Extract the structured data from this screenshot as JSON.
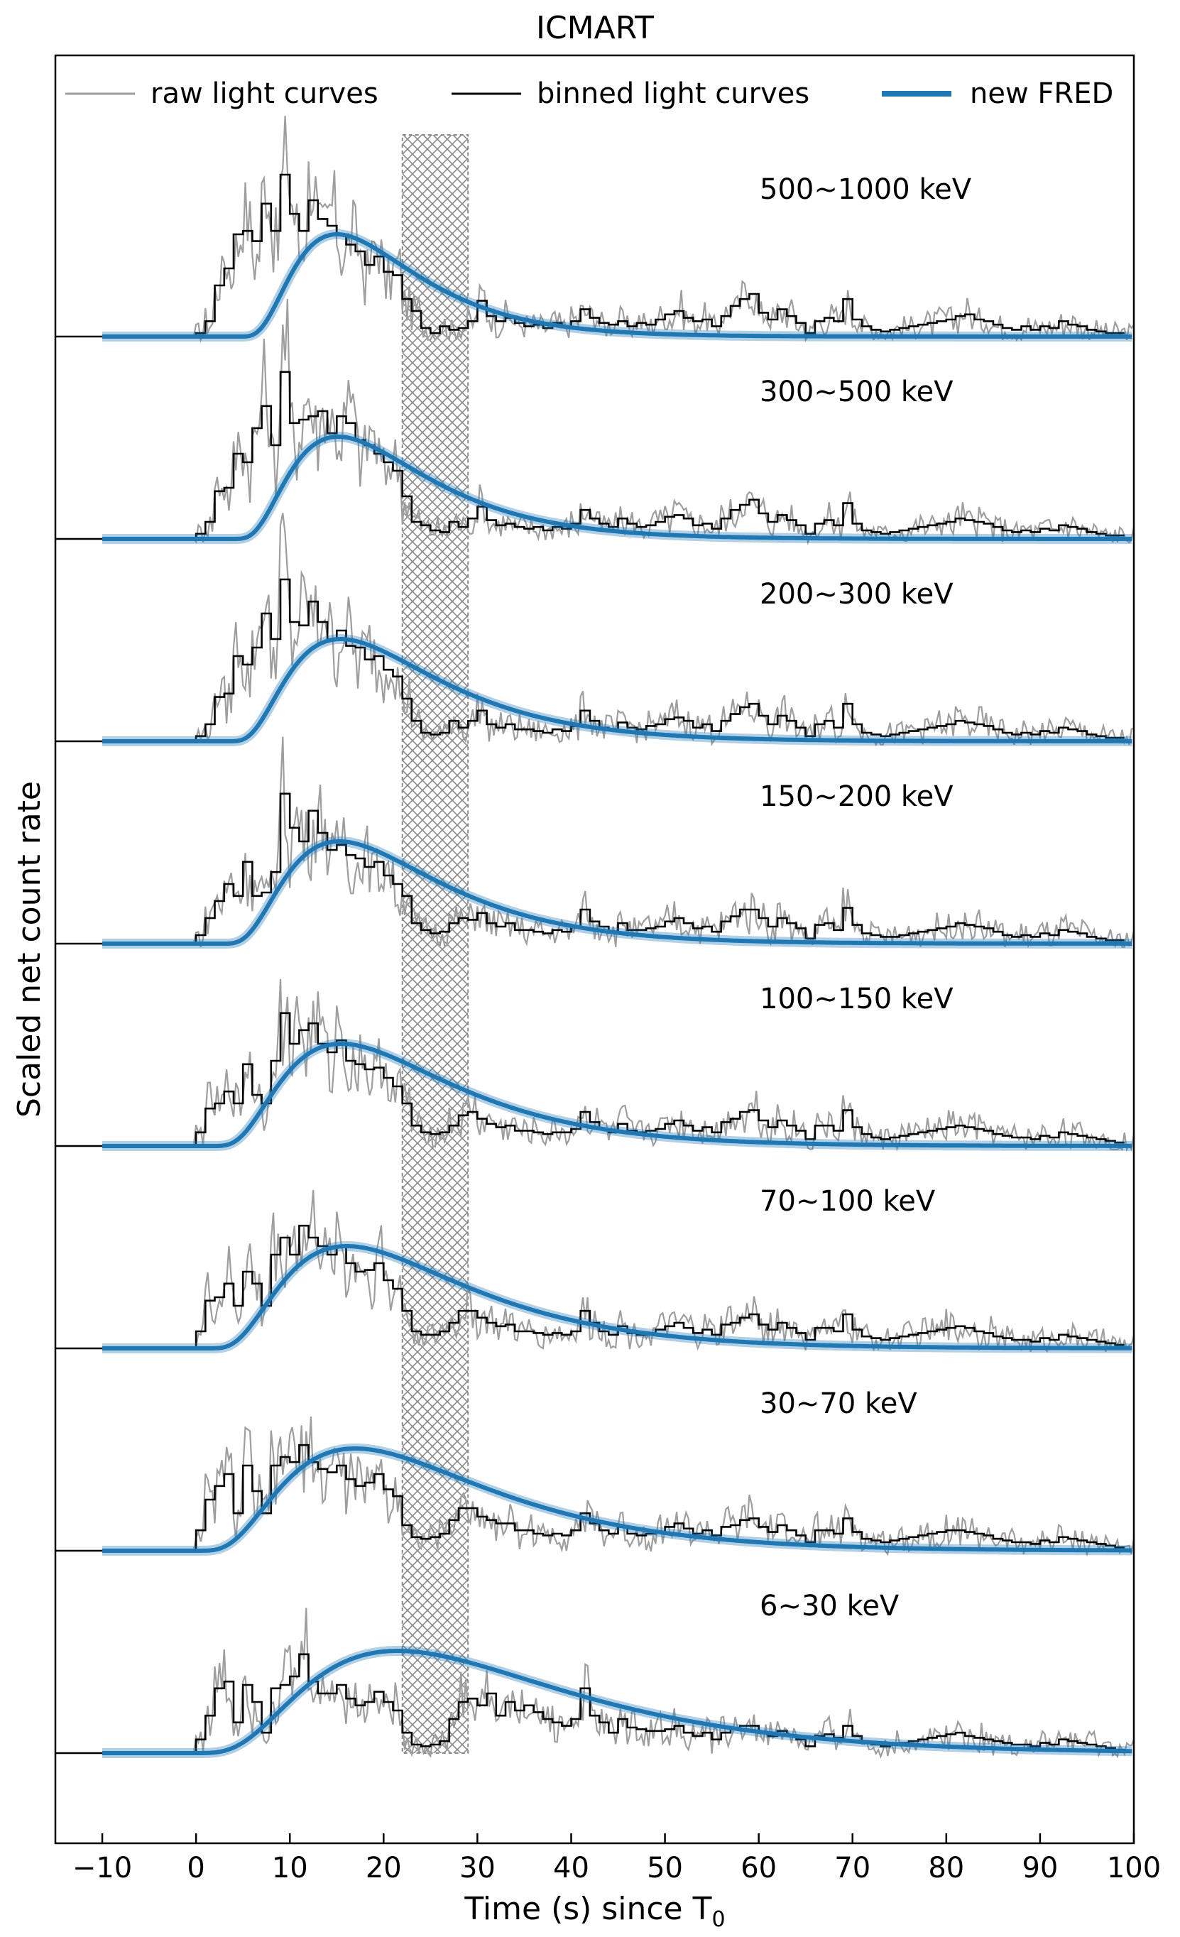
{
  "chart_data": {
    "type": "line",
    "title": "ICMART",
    "xlabel": "Time (s) since T",
    "xlabel_subscript": "0",
    "ylabel": "Scaled net count rate",
    "xlim": [
      -15,
      100
    ],
    "xticks": [
      -10,
      0,
      10,
      20,
      30,
      40,
      50,
      60,
      70,
      80,
      90,
      100
    ],
    "xtick_labels": [
      "−10",
      "0",
      "10",
      "20",
      "30",
      "40",
      "50",
      "60",
      "70",
      "80",
      "90",
      "100"
    ],
    "grid": false,
    "legend_position": "top",
    "legend": [
      {
        "label": "raw light curves",
        "color": "#9e9e9e"
      },
      {
        "label": "binned light curves",
        "color": "#000000"
      },
      {
        "label": "new FRED",
        "color": "#1f77b4"
      }
    ],
    "shaded_interval": {
      "start": 22,
      "end": 29,
      "pattern": "crosshatch"
    },
    "colors": {
      "raw": "#9e9e9e",
      "binned": "#000000",
      "fred": "#1f77b4",
      "hatch": "#8a8a8a"
    },
    "bin_edges": [
      -10,
      0,
      1,
      2,
      3,
      4,
      5,
      6,
      7,
      8,
      9,
      10,
      11,
      12,
      13,
      14,
      15,
      16,
      17,
      18,
      19,
      20,
      21,
      22,
      23,
      24,
      25,
      26,
      27,
      28,
      29,
      30,
      31,
      32,
      33,
      34,
      35,
      36,
      37,
      38,
      39,
      40,
      41,
      42,
      43,
      44,
      45,
      46,
      47,
      48,
      49,
      50,
      51,
      52,
      53,
      54,
      55,
      56,
      57,
      58,
      59,
      60,
      61,
      62,
      63,
      64,
      65,
      66,
      67,
      68,
      69,
      70,
      71,
      72,
      73,
      74,
      75,
      76,
      77,
      78,
      79,
      80,
      81,
      82,
      83,
      84,
      85,
      86,
      87,
      88,
      89,
      90,
      91,
      92,
      93,
      94,
      95,
      96,
      97,
      98,
      99,
      100
    ],
    "series": [
      {
        "name": "500~1000 keV",
        "label": "500~1000 keV",
        "fred": {
          "t0": 3.2,
          "tau1": 20,
          "tau2": 7
        },
        "binned": [
          0,
          0.02,
          0.09,
          0.3,
          0.4,
          0.6,
          0.62,
          0.56,
          0.78,
          0.62,
          0.95,
          0.72,
          0.62,
          0.8,
          0.69,
          0.65,
          0.6,
          0.54,
          0.5,
          0.42,
          0.47,
          0.38,
          0.36,
          0.22,
          0.15,
          0.05,
          0.02,
          0.06,
          0.04,
          0.05,
          0.09,
          0.21,
          0.12,
          0.09,
          0.11,
          0.08,
          0.06,
          0.07,
          0.05,
          0.08,
          0.06,
          0.09,
          0.16,
          0.11,
          0.08,
          0.07,
          0.09,
          0.06,
          0.08,
          0.07,
          0.1,
          0.13,
          0.15,
          0.11,
          0.09,
          0.1,
          0.06,
          0.12,
          0.18,
          0.22,
          0.25,
          0.14,
          0.1,
          0.16,
          0.12,
          0.08,
          0.02,
          0.09,
          0.11,
          0.09,
          0.22,
          0.1,
          0.06,
          0.04,
          0.03,
          0.04,
          0.05,
          0.06,
          0.07,
          0.08,
          0.09,
          0.1,
          0.12,
          0.13,
          0.1,
          0.09,
          0.07,
          0.05,
          0.04,
          0.06,
          0.04,
          0.06,
          0.05,
          0.09,
          0.07,
          0.06,
          0.04,
          0.03,
          0.02,
          0.02
        ]
      },
      {
        "name": "300~500 keV",
        "label": "300~500 keV",
        "fred": {
          "t0": 2.5,
          "tau1": 20,
          "tau2": 8
        },
        "binned": [
          0,
          0.03,
          0.1,
          0.28,
          0.3,
          0.5,
          0.45,
          0.65,
          0.78,
          0.55,
          0.98,
          0.68,
          0.7,
          0.72,
          0.75,
          0.62,
          0.72,
          0.68,
          0.58,
          0.55,
          0.5,
          0.45,
          0.4,
          0.25,
          0.1,
          0.08,
          0.05,
          0.04,
          0.1,
          0.07,
          0.12,
          0.19,
          0.11,
          0.08,
          0.09,
          0.07,
          0.06,
          0.07,
          0.05,
          0.07,
          0.06,
          0.09,
          0.17,
          0.12,
          0.09,
          0.07,
          0.12,
          0.09,
          0.07,
          0.08,
          0.1,
          0.13,
          0.14,
          0.12,
          0.08,
          0.09,
          0.06,
          0.12,
          0.17,
          0.2,
          0.23,
          0.15,
          0.1,
          0.14,
          0.11,
          0.08,
          0.03,
          0.09,
          0.11,
          0.08,
          0.21,
          0.09,
          0.05,
          0.04,
          0.03,
          0.04,
          0.05,
          0.06,
          0.07,
          0.08,
          0.09,
          0.1,
          0.12,
          0.11,
          0.1,
          0.09,
          0.07,
          0.05,
          0.04,
          0.05,
          0.04,
          0.06,
          0.05,
          0.08,
          0.07,
          0.06,
          0.04,
          0.03,
          0.02,
          0.02
        ]
      },
      {
        "name": "200~300 keV",
        "label": "200~300 keV",
        "fred": {
          "t0": 2,
          "tau1": 20,
          "tau2": 9
        },
        "binned": [
          0,
          0.03,
          0.1,
          0.26,
          0.28,
          0.5,
          0.45,
          0.55,
          0.75,
          0.6,
          0.95,
          0.7,
          0.68,
          0.82,
          0.7,
          0.6,
          0.65,
          0.56,
          0.55,
          0.48,
          0.5,
          0.42,
          0.38,
          0.25,
          0.12,
          0.05,
          0.04,
          0.05,
          0.12,
          0.08,
          0.12,
          0.18,
          0.1,
          0.08,
          0.1,
          0.07,
          0.07,
          0.06,
          0.05,
          0.07,
          0.06,
          0.09,
          0.18,
          0.12,
          0.08,
          0.07,
          0.11,
          0.08,
          0.07,
          0.09,
          0.1,
          0.13,
          0.14,
          0.12,
          0.08,
          0.1,
          0.06,
          0.12,
          0.16,
          0.2,
          0.22,
          0.15,
          0.1,
          0.15,
          0.12,
          0.08,
          0.03,
          0.1,
          0.12,
          0.08,
          0.22,
          0.1,
          0.05,
          0.04,
          0.03,
          0.04,
          0.05,
          0.06,
          0.07,
          0.08,
          0.09,
          0.1,
          0.12,
          0.11,
          0.1,
          0.09,
          0.07,
          0.05,
          0.04,
          0.05,
          0.04,
          0.06,
          0.05,
          0.08,
          0.07,
          0.06,
          0.04,
          0.03,
          0.02,
          0.02
        ]
      },
      {
        "name": "150~200 keV",
        "label": "150~200 keV",
        "fred": {
          "t0": 1.2,
          "tau1": 22,
          "tau2": 9
        },
        "binned": [
          0,
          0.05,
          0.15,
          0.25,
          0.35,
          0.28,
          0.48,
          0.28,
          0.3,
          0.42,
          0.88,
          0.68,
          0.6,
          0.78,
          0.65,
          0.55,
          0.58,
          0.52,
          0.5,
          0.45,
          0.48,
          0.4,
          0.35,
          0.28,
          0.12,
          0.08,
          0.06,
          0.07,
          0.12,
          0.15,
          0.14,
          0.18,
          0.12,
          0.1,
          0.12,
          0.08,
          0.08,
          0.07,
          0.06,
          0.08,
          0.07,
          0.1,
          0.2,
          0.13,
          0.1,
          0.07,
          0.12,
          0.08,
          0.08,
          0.09,
          0.1,
          0.13,
          0.15,
          0.12,
          0.09,
          0.1,
          0.07,
          0.13,
          0.16,
          0.2,
          0.2,
          0.15,
          0.1,
          0.15,
          0.12,
          0.09,
          0.03,
          0.11,
          0.12,
          0.08,
          0.21,
          0.11,
          0.06,
          0.05,
          0.04,
          0.04,
          0.05,
          0.06,
          0.07,
          0.08,
          0.09,
          0.1,
          0.12,
          0.11,
          0.1,
          0.09,
          0.07,
          0.05,
          0.04,
          0.05,
          0.04,
          0.06,
          0.05,
          0.08,
          0.07,
          0.06,
          0.04,
          0.03,
          0.02,
          0.02
        ]
      },
      {
        "name": "100~150 keV",
        "label": "100~150 keV",
        "fred": {
          "t0": 0,
          "tau1": 24,
          "tau2": 10
        },
        "binned": [
          0,
          0.08,
          0.22,
          0.25,
          0.32,
          0.25,
          0.48,
          0.3,
          0.25,
          0.5,
          0.78,
          0.6,
          0.68,
          0.72,
          0.6,
          0.55,
          0.62,
          0.5,
          0.48,
          0.45,
          0.46,
          0.4,
          0.35,
          0.25,
          0.12,
          0.08,
          0.07,
          0.08,
          0.12,
          0.18,
          0.2,
          0.16,
          0.13,
          0.11,
          0.12,
          0.09,
          0.09,
          0.08,
          0.07,
          0.08,
          0.08,
          0.1,
          0.2,
          0.14,
          0.1,
          0.08,
          0.13,
          0.09,
          0.08,
          0.09,
          0.1,
          0.13,
          0.15,
          0.12,
          0.09,
          0.11,
          0.08,
          0.14,
          0.16,
          0.2,
          0.21,
          0.15,
          0.11,
          0.15,
          0.12,
          0.09,
          0.04,
          0.12,
          0.12,
          0.09,
          0.21,
          0.11,
          0.07,
          0.05,
          0.04,
          0.05,
          0.06,
          0.07,
          0.08,
          0.09,
          0.1,
          0.11,
          0.12,
          0.11,
          0.1,
          0.09,
          0.07,
          0.06,
          0.05,
          0.05,
          0.04,
          0.06,
          0.05,
          0.08,
          0.07,
          0.06,
          0.05,
          0.04,
          0.03,
          0.02
        ]
      },
      {
        "name": "70~100 keV",
        "label": "70~100 keV",
        "fred": {
          "t0": -0.5,
          "tau1": 25,
          "tau2": 11
        },
        "binned": [
          0,
          0.1,
          0.28,
          0.3,
          0.38,
          0.25,
          0.45,
          0.38,
          0.25,
          0.55,
          0.65,
          0.55,
          0.72,
          0.65,
          0.6,
          0.55,
          0.6,
          0.5,
          0.45,
          0.46,
          0.5,
          0.4,
          0.35,
          0.22,
          0.1,
          0.08,
          0.08,
          0.1,
          0.15,
          0.22,
          0.22,
          0.18,
          0.15,
          0.13,
          0.14,
          0.1,
          0.1,
          0.09,
          0.08,
          0.09,
          0.08,
          0.1,
          0.22,
          0.15,
          0.1,
          0.08,
          0.13,
          0.09,
          0.08,
          0.09,
          0.11,
          0.13,
          0.15,
          0.12,
          0.09,
          0.11,
          0.08,
          0.14,
          0.15,
          0.18,
          0.2,
          0.14,
          0.11,
          0.15,
          0.12,
          0.09,
          0.05,
          0.12,
          0.12,
          0.1,
          0.2,
          0.11,
          0.07,
          0.06,
          0.05,
          0.06,
          0.07,
          0.08,
          0.09,
          0.1,
          0.11,
          0.12,
          0.13,
          0.12,
          0.1,
          0.09,
          0.07,
          0.06,
          0.05,
          0.05,
          0.04,
          0.06,
          0.05,
          0.08,
          0.07,
          0.06,
          0.05,
          0.04,
          0.03,
          0.02
        ]
      },
      {
        "name": "30~70 keV",
        "label": "30~70 keV",
        "fred": {
          "t0": -2,
          "tau1": 30,
          "tau2": 12
        },
        "binned": [
          0,
          0.12,
          0.3,
          0.38,
          0.45,
          0.22,
          0.5,
          0.35,
          0.22,
          0.5,
          0.55,
          0.52,
          0.62,
          0.52,
          0.48,
          0.46,
          0.5,
          0.42,
          0.38,
          0.4,
          0.45,
          0.36,
          0.32,
          0.15,
          0.08,
          0.07,
          0.08,
          0.1,
          0.18,
          0.25,
          0.25,
          0.2,
          0.18,
          0.16,
          0.16,
          0.12,
          0.12,
          0.1,
          0.09,
          0.1,
          0.09,
          0.12,
          0.22,
          0.16,
          0.12,
          0.1,
          0.14,
          0.1,
          0.09,
          0.1,
          0.11,
          0.14,
          0.16,
          0.13,
          0.1,
          0.12,
          0.09,
          0.14,
          0.15,
          0.18,
          0.19,
          0.14,
          0.11,
          0.15,
          0.12,
          0.09,
          0.05,
          0.12,
          0.12,
          0.1,
          0.19,
          0.11,
          0.07,
          0.06,
          0.05,
          0.06,
          0.07,
          0.08,
          0.09,
          0.1,
          0.11,
          0.12,
          0.12,
          0.11,
          0.1,
          0.09,
          0.07,
          0.06,
          0.05,
          0.05,
          0.04,
          0.06,
          0.05,
          0.08,
          0.07,
          0.06,
          0.05,
          0.04,
          0.03,
          0.02
        ]
      },
      {
        "name": "6~30 keV",
        "label": "6~30 keV",
        "fred": {
          "t0": -3,
          "tau1": 40,
          "tau2": 15
        },
        "binned": [
          0,
          0.08,
          0.22,
          0.38,
          0.42,
          0.18,
          0.4,
          0.3,
          0.12,
          0.38,
          0.4,
          0.45,
          0.58,
          0.42,
          0.35,
          0.35,
          0.4,
          0.32,
          0.28,
          0.3,
          0.36,
          0.3,
          0.25,
          0.12,
          0.05,
          0.04,
          0.05,
          0.07,
          0.2,
          0.3,
          0.32,
          0.28,
          0.35,
          0.22,
          0.3,
          0.25,
          0.28,
          0.24,
          0.2,
          0.18,
          0.16,
          0.2,
          0.38,
          0.22,
          0.18,
          0.12,
          0.2,
          0.15,
          0.14,
          0.13,
          0.13,
          0.14,
          0.16,
          0.12,
          0.1,
          0.12,
          0.08,
          0.12,
          0.14,
          0.16,
          0.16,
          0.12,
          0.1,
          0.13,
          0.1,
          0.08,
          0.04,
          0.1,
          0.11,
          0.09,
          0.16,
          0.1,
          0.06,
          0.05,
          0.04,
          0.05,
          0.06,
          0.07,
          0.08,
          0.09,
          0.1,
          0.11,
          0.12,
          0.1,
          0.09,
          0.08,
          0.07,
          0.06,
          0.05,
          0.05,
          0.04,
          0.06,
          0.05,
          0.08,
          0.07,
          0.06,
          0.05,
          0.04,
          0.03,
          0.02
        ]
      }
    ]
  }
}
